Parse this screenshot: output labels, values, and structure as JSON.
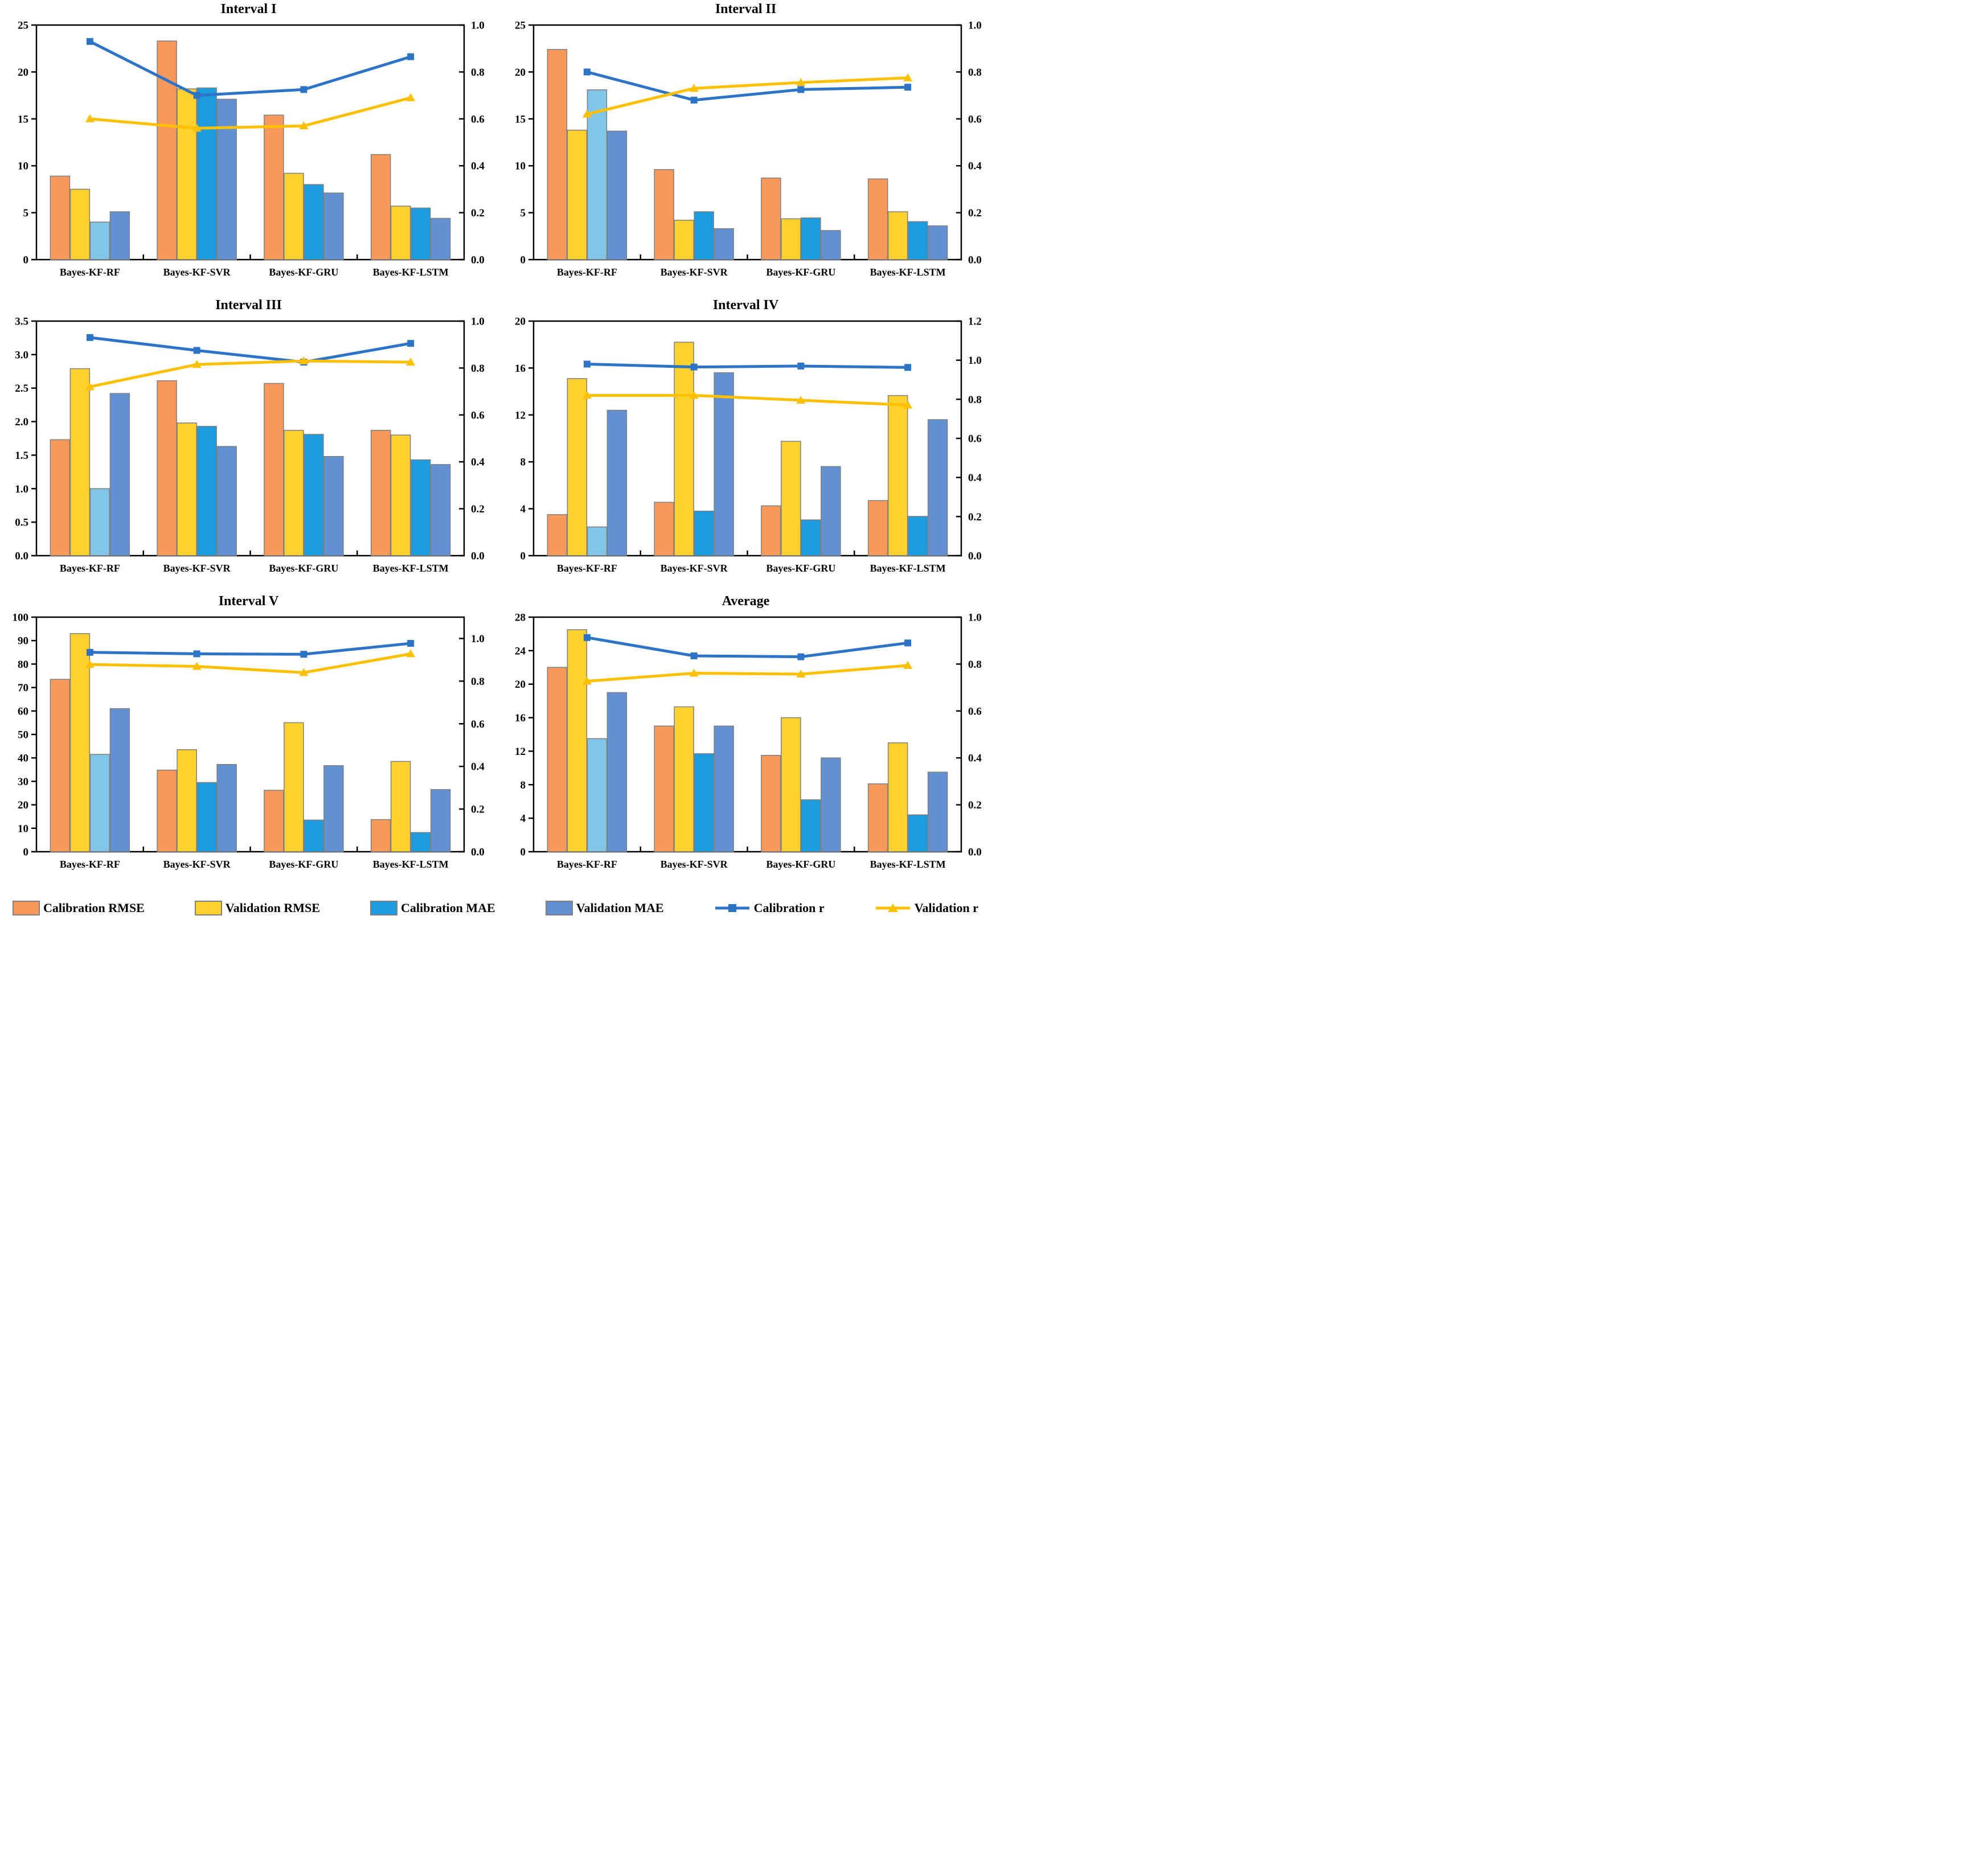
{
  "colors": {
    "calibration_rmse": "#F8995B",
    "validation_rmse": "#FFD12E",
    "calibration_mae": "#1C9CDF",
    "calibration_mae_rf": "#81C5E8",
    "validation_mae": "#6190D3",
    "calibration_r_line": "#2E74C6",
    "validation_r_line": "#FFC003",
    "bar_border": "#7F7F7F",
    "axis": "#000000"
  },
  "legend": {
    "items": [
      {
        "label": "Calibration RMSE",
        "type": "bar",
        "color": "#F8995B"
      },
      {
        "label": "Validation RMSE",
        "type": "bar",
        "color": "#FFD12E"
      },
      {
        "label": "Calibration MAE",
        "type": "bar",
        "color": "#1C9CDF"
      },
      {
        "label": "Validation MAE",
        "type": "bar",
        "color": "#6190D3"
      },
      {
        "label": "Calibration r",
        "type": "line",
        "color": "#2E74C6",
        "marker": "square"
      },
      {
        "label": "Validation r",
        "type": "line",
        "color": "#FFC003",
        "marker": "triangle"
      }
    ]
  },
  "chart_data": [
    {
      "type": "bar",
      "title": "Interval I",
      "categories": [
        "Bayes-KF-RF",
        "Bayes-KF-SVR",
        "Bayes-KF-GRU",
        "Bayes-KF-LSTM"
      ],
      "left_axis": {
        "min": 0,
        "max": 25,
        "step": 5,
        "labels": [
          "0",
          "5",
          "10",
          "15",
          "20",
          "25"
        ]
      },
      "right_axis": {
        "min": 0,
        "max": 1.0,
        "step": 0.2,
        "labels": [
          "0.0",
          "0.2",
          "0.4",
          "0.6",
          "0.8",
          "1.0"
        ]
      },
      "bar_series": [
        {
          "name": "Calibration RMSE",
          "values": [
            8.9,
            23.3,
            15.4,
            11.2
          ]
        },
        {
          "name": "Validation RMSE",
          "values": [
            7.5,
            18.2,
            9.2,
            5.7
          ]
        },
        {
          "name": "Calibration MAE",
          "values": [
            4.0,
            18.3,
            8.0,
            5.5
          ]
        },
        {
          "name": "Validation MAE",
          "values": [
            5.1,
            17.1,
            7.1,
            4.4
          ]
        }
      ],
      "line_series": [
        {
          "name": "Calibration r",
          "values": [
            0.93,
            0.7,
            0.725,
            0.865
          ]
        },
        {
          "name": "Validation r",
          "values": [
            0.6,
            0.56,
            0.57,
            0.69
          ]
        }
      ]
    },
    {
      "type": "bar",
      "title": "Interval II",
      "categories": [
        "Bayes-KF-RF",
        "Bayes-KF-SVR",
        "Bayes-KF-GRU",
        "Bayes-KF-LSTM"
      ],
      "left_axis": {
        "min": 0,
        "max": 25,
        "step": 5,
        "labels": [
          "0",
          "5",
          "10",
          "15",
          "20",
          "25"
        ]
      },
      "right_axis": {
        "min": 0,
        "max": 1.0,
        "step": 0.2,
        "labels": [
          "0.0",
          "0.2",
          "0.4",
          "0.6",
          "0.8",
          "1.0"
        ]
      },
      "bar_series": [
        {
          "name": "Calibration RMSE",
          "values": [
            22.4,
            9.6,
            8.7,
            8.6
          ]
        },
        {
          "name": "Validation RMSE",
          "values": [
            13.8,
            4.2,
            4.35,
            5.1
          ]
        },
        {
          "name": "Calibration MAE",
          "values": [
            18.1,
            5.1,
            4.45,
            4.05
          ]
        },
        {
          "name": "Validation MAE",
          "values": [
            13.7,
            3.3,
            3.1,
            3.6
          ]
        }
      ],
      "line_series": [
        {
          "name": "Calibration r",
          "values": [
            0.8,
            0.68,
            0.725,
            0.735
          ]
        },
        {
          "name": "Validation r",
          "values": [
            0.62,
            0.73,
            0.755,
            0.775
          ]
        }
      ]
    },
    {
      "type": "bar",
      "title": "Interval III",
      "categories": [
        "Bayes-KF-RF",
        "Bayes-KF-SVR",
        "Bayes-KF-GRU",
        "Bayes-KF-LSTM"
      ],
      "left_axis": {
        "min": 0,
        "max": 3.5,
        "step": 0.5,
        "labels": [
          "0.0",
          "0.5",
          "1.0",
          "1.5",
          "2.0",
          "2.5",
          "3.0",
          "3.5"
        ]
      },
      "right_axis": {
        "min": 0,
        "max": 1.0,
        "step": 0.2,
        "labels": [
          "0.0",
          "0.2",
          "0.4",
          "0.6",
          "0.8",
          "1.0"
        ]
      },
      "bar_series": [
        {
          "name": "Calibration RMSE",
          "values": [
            1.73,
            2.61,
            2.57,
            1.87
          ]
        },
        {
          "name": "Validation RMSE",
          "values": [
            2.79,
            1.98,
            1.87,
            1.8
          ]
        },
        {
          "name": "Calibration MAE",
          "values": [
            1.0,
            1.93,
            1.81,
            1.43
          ]
        },
        {
          "name": "Validation MAE",
          "values": [
            2.42,
            1.63,
            1.48,
            1.36
          ]
        }
      ],
      "line_series": [
        {
          "name": "Calibration r",
          "values": [
            0.93,
            0.875,
            0.825,
            0.905
          ]
        },
        {
          "name": "Validation r",
          "values": [
            0.72,
            0.815,
            0.83,
            0.825
          ]
        }
      ]
    },
    {
      "type": "bar",
      "title": "Interval IV",
      "categories": [
        "Bayes-KF-RF",
        "Bayes-KF-SVR",
        "Bayes-KF-GRU",
        "Bayes-KF-LSTM"
      ],
      "left_axis": {
        "min": 0,
        "max": 20,
        "step": 4,
        "labels": [
          "0",
          "4",
          "8",
          "12",
          "16",
          "20"
        ]
      },
      "right_axis": {
        "min": 0,
        "max": 1.2,
        "step": 0.2,
        "labels": [
          "0.0",
          "0.2",
          "0.4",
          "0.6",
          "0.8",
          "1.0",
          "1.2"
        ]
      },
      "bar_series": [
        {
          "name": "Calibration RMSE",
          "values": [
            3.5,
            4.55,
            4.25,
            4.7
          ]
        },
        {
          "name": "Validation RMSE",
          "values": [
            15.1,
            18.2,
            9.75,
            13.65
          ]
        },
        {
          "name": "Calibration MAE",
          "values": [
            2.45,
            3.8,
            3.05,
            3.35
          ]
        },
        {
          "name": "Validation MAE",
          "values": [
            12.4,
            15.6,
            7.6,
            11.6
          ]
        }
      ],
      "line_series": [
        {
          "name": "Calibration r",
          "values": [
            0.98,
            0.965,
            0.97,
            0.963
          ]
        },
        {
          "name": "Validation r",
          "values": [
            0.82,
            0.82,
            0.795,
            0.77
          ]
        }
      ]
    },
    {
      "type": "bar",
      "title": "Interval V",
      "categories": [
        "Bayes-KF-RF",
        "Bayes-KF-SVR",
        "Bayes-KF-GRU",
        "Bayes-KF-LSTM"
      ],
      "left_axis": {
        "min": 0,
        "max": 100,
        "step": 10,
        "labels": [
          "0",
          "10",
          "20",
          "30",
          "40",
          "50",
          "60",
          "70",
          "80",
          "90",
          "100"
        ]
      },
      "right_axis": {
        "min": 0,
        "max": 1.1,
        "step": 0.2,
        "labels": [
          "0.0",
          "0.2",
          "0.4",
          "0.6",
          "0.8",
          "1.0"
        ]
      },
      "bar_series": [
        {
          "name": "Calibration RMSE",
          "values": [
            73.5,
            34.8,
            26.2,
            13.7
          ]
        },
        {
          "name": "Validation RMSE",
          "values": [
            93.0,
            43.5,
            55.0,
            38.5
          ]
        },
        {
          "name": "Calibration MAE",
          "values": [
            41.5,
            29.5,
            13.5,
            8.2
          ]
        },
        {
          "name": "Validation MAE",
          "values": [
            61.0,
            37.2,
            36.7,
            26.5
          ]
        }
      ],
      "line_series": [
        {
          "name": "Calibration r",
          "values": [
            0.935,
            0.928,
            0.926,
            0.977
          ]
        },
        {
          "name": "Validation r",
          "values": [
            0.878,
            0.869,
            0.84,
            0.928
          ]
        }
      ]
    },
    {
      "type": "bar",
      "title": "Average",
      "categories": [
        "Bayes-KF-RF",
        "Bayes-KF-SVR",
        "Bayes-KF-GRU",
        "Bayes-KF-LSTM"
      ],
      "left_axis": {
        "min": 0,
        "max": 28,
        "step": 4,
        "labels": [
          "0",
          "4",
          "8",
          "12",
          "16",
          "20",
          "24",
          "28"
        ]
      },
      "right_axis": {
        "min": 0,
        "max": 1.0,
        "step": 0.2,
        "labels": [
          "0.0",
          "0.2",
          "0.4",
          "0.6",
          "0.8",
          "1.0"
        ]
      },
      "bar_series": [
        {
          "name": "Calibration RMSE",
          "values": [
            22.0,
            15.0,
            11.5,
            8.1
          ]
        },
        {
          "name": "Validation RMSE",
          "values": [
            26.5,
            17.3,
            16.0,
            13.0
          ]
        },
        {
          "name": "Calibration MAE",
          "values": [
            13.5,
            11.7,
            6.2,
            4.4
          ]
        },
        {
          "name": "Validation MAE",
          "values": [
            19.0,
            15.0,
            11.2,
            9.5
          ]
        }
      ],
      "line_series": [
        {
          "name": "Calibration r",
          "values": [
            0.913,
            0.835,
            0.831,
            0.89
          ]
        },
        {
          "name": "Validation r",
          "values": [
            0.727,
            0.761,
            0.757,
            0.794
          ]
        }
      ]
    }
  ]
}
